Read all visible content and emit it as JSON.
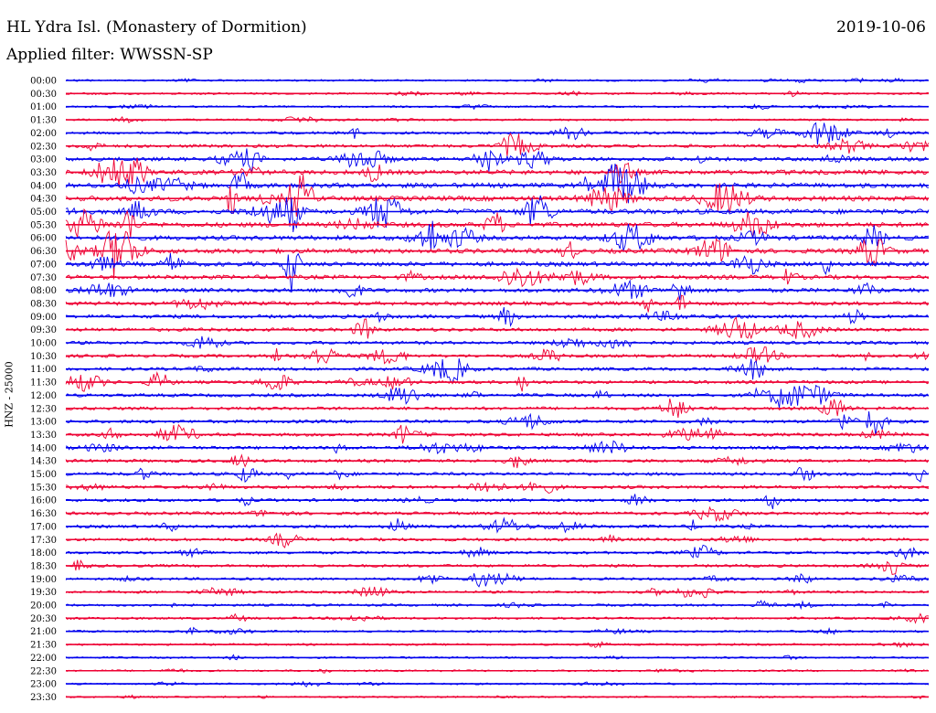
{
  "header": {
    "station": "HL Ydra Isl. (Monastery of Dormition)",
    "date": "2019-10-06",
    "filter": "Applied filter: WWSSN-SP",
    "channel": "HNZ - 25000"
  },
  "colors": {
    "blue": "#0000ee",
    "red": "#ee0033"
  },
  "chart_data": {
    "type": "line",
    "title": "HL Ydra Isl. (Monastery of Dormition)",
    "subtitle": "Applied filter: WWSSN-SP",
    "date": "2019-10-06",
    "ylabel": "HNZ - 25000",
    "xlabel": "",
    "grid": false,
    "legend": "none",
    "rows": [
      "00:00",
      "00:30",
      "01:00",
      "01:30",
      "02:00",
      "02:30",
      "03:00",
      "03:30",
      "04:00",
      "04:30",
      "05:00",
      "05:30",
      "06:00",
      "06:30",
      "07:00",
      "07:30",
      "08:00",
      "08:30",
      "09:00",
      "09:30",
      "10:00",
      "10:30",
      "11:00",
      "11:30",
      "12:00",
      "12:30",
      "13:00",
      "13:30",
      "14:00",
      "14:30",
      "15:00",
      "15:30",
      "16:00",
      "16:30",
      "17:00",
      "17:30",
      "18:00",
      "18:30",
      "19:00",
      "19:30",
      "20:00",
      "20:30",
      "21:00",
      "21:30",
      "22:00",
      "22:30",
      "23:00",
      "23:30"
    ],
    "row_colors": [
      "blue",
      "red"
    ],
    "trace_amplitude": [
      0.1,
      0.15,
      0.12,
      0.14,
      0.35,
      0.45,
      0.6,
      0.8,
      0.85,
      0.9,
      0.9,
      0.85,
      0.8,
      0.8,
      0.75,
      0.7,
      0.65,
      0.6,
      0.55,
      0.5,
      0.45,
      0.45,
      0.45,
      0.45,
      0.45,
      0.45,
      0.45,
      0.45,
      0.45,
      0.45,
      0.45,
      0.45,
      0.4,
      0.4,
      0.4,
      0.4,
      0.35,
      0.35,
      0.3,
      0.3,
      0.25,
      0.22,
      0.18,
      0.15,
      0.12,
      0.1,
      0.1,
      0.06
    ]
  }
}
